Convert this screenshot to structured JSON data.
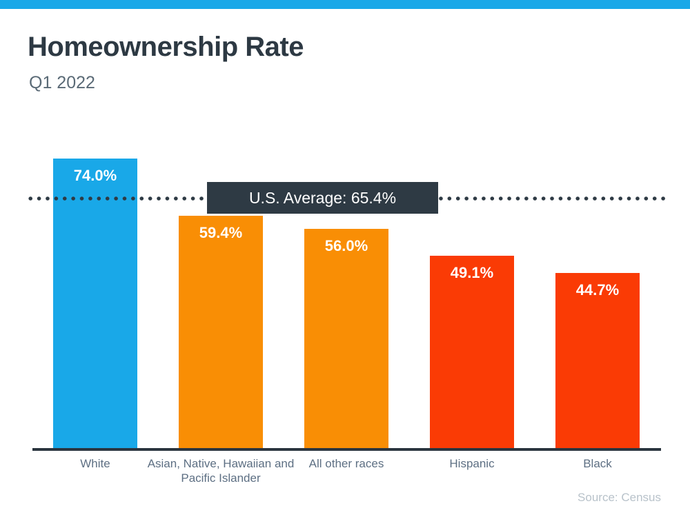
{
  "header": {
    "title": "Homeownership Rate",
    "subtitle": "Q1 2022"
  },
  "source": "Source: Census",
  "colors": {
    "accent": "#19A8E8",
    "dark": "#2E3A44",
    "axis": "#2B353F",
    "title": "#2D3943",
    "subtitle_gray": "#5A6A76",
    "label_gray": "#5D6F83",
    "source_gray": "#B8C2CA"
  },
  "chart_data": {
    "type": "bar",
    "title": "Homeownership Rate",
    "subtitle": "Q1 2022",
    "categories": [
      "White",
      "Asian, Native, Hawaiian and Pacific Islander",
      "All other races",
      "Hispanic",
      "Black"
    ],
    "values": [
      74.0,
      59.4,
      56.0,
      49.1,
      44.7
    ],
    "value_labels": [
      "74.0%",
      "59.4%",
      "56.0%",
      "49.1%",
      "44.7%"
    ],
    "bar_colors": [
      "#19A8E8",
      "#F98E05",
      "#F98E05",
      "#FA3B05",
      "#FA3B05"
    ],
    "reference_line": {
      "label": "U.S. Average: 65.4%",
      "value": 65.4
    },
    "xlabel": "",
    "ylabel": "",
    "ylim": [
      0,
      87
    ],
    "grid": false,
    "legend": "none"
  }
}
